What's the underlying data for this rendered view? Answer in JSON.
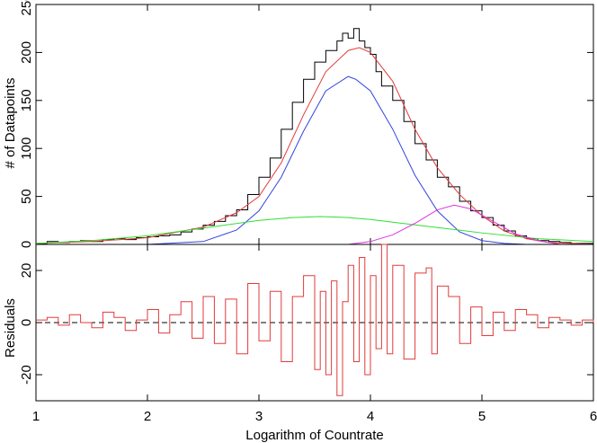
{
  "chart_data": [
    {
      "type": "line",
      "panel": "top",
      "xlabel": "",
      "ylabel": "# of Datapoints",
      "xlim": [
        1,
        6
      ],
      "ylim": [
        0,
        250
      ],
      "yticks": [
        0,
        50,
        100,
        150,
        200,
        250
      ],
      "series": [
        {
          "style": "histogram",
          "color": "#000000",
          "x": [
            1.0,
            1.1,
            1.2,
            1.3,
            1.4,
            1.5,
            1.6,
            1.7,
            1.8,
            1.9,
            2.0,
            2.1,
            2.2,
            2.3,
            2.4,
            2.5,
            2.6,
            2.7,
            2.8,
            2.9,
            3.0,
            3.1,
            3.2,
            3.3,
            3.4,
            3.5,
            3.6,
            3.7,
            3.75,
            3.8,
            3.85,
            3.9,
            3.95,
            4.0,
            4.05,
            4.1,
            4.2,
            4.3,
            4.4,
            4.5,
            4.6,
            4.7,
            4.8,
            4.9,
            5.0,
            5.1,
            5.2,
            5.3,
            5.4,
            5.5,
            5.6,
            5.7,
            5.8,
            5.9,
            6.0
          ],
          "values": [
            1,
            3,
            2,
            3,
            4,
            3,
            5,
            6,
            5,
            7,
            8,
            9,
            10,
            13,
            16,
            20,
            24,
            30,
            36,
            52,
            70,
            90,
            120,
            148,
            172,
            190,
            202,
            212,
            220,
            215,
            225,
            212,
            205,
            198,
            180,
            165,
            150,
            128,
            105,
            88,
            70,
            60,
            45,
            35,
            28,
            20,
            14,
            9,
            6,
            4,
            3,
            2,
            1,
            1,
            0
          ]
        },
        {
          "style": "line",
          "color": "#e23b3b",
          "x": [
            1.0,
            1.5,
            2.0,
            2.5,
            2.8,
            3.0,
            3.2,
            3.4,
            3.6,
            3.8,
            3.9,
            4.0,
            4.2,
            4.4,
            4.6,
            4.8,
            5.0,
            5.2,
            5.4,
            5.6,
            5.8,
            6.0
          ],
          "values": [
            1,
            3,
            7,
            18,
            33,
            50,
            85,
            135,
            180,
            202,
            205,
            200,
            170,
            120,
            80,
            52,
            30,
            14,
            6,
            2,
            1,
            0
          ]
        },
        {
          "style": "line",
          "color": "#3344e0",
          "x": [
            2.0,
            2.5,
            2.8,
            3.0,
            3.2,
            3.4,
            3.6,
            3.8,
            3.87,
            4.0,
            4.2,
            4.4,
            4.6,
            4.8,
            5.0,
            5.2,
            5.4
          ],
          "values": [
            0,
            3,
            15,
            35,
            70,
            118,
            160,
            175,
            172,
            160,
            120,
            72,
            35,
            13,
            4,
            1,
            0
          ]
        },
        {
          "style": "line",
          "color": "#33dd33",
          "x": [
            1.0,
            1.5,
            2.0,
            2.5,
            3.0,
            3.3,
            3.55,
            3.8,
            4.0,
            4.5,
            5.0,
            5.5,
            6.0
          ],
          "values": [
            1,
            4,
            9,
            17,
            25,
            28,
            29,
            28,
            26,
            19,
            12,
            6,
            3
          ]
        },
        {
          "style": "line",
          "color": "#dd33dd",
          "x": [
            3.8,
            4.0,
            4.2,
            4.4,
            4.6,
            4.75,
            4.9,
            5.1,
            5.3,
            5.5,
            5.7
          ],
          "values": [
            0,
            3,
            10,
            22,
            36,
            41,
            37,
            24,
            11,
            4,
            0
          ]
        }
      ]
    },
    {
      "type": "line",
      "panel": "bottom",
      "xlabel": "Logarithm of Countrate",
      "ylabel": "Residuals",
      "xlim": [
        1,
        6
      ],
      "ylim": [
        -30,
        30
      ],
      "xticks": [
        1,
        2,
        3,
        4,
        5,
        6
      ],
      "yticks": [
        -20,
        0,
        20
      ],
      "zero_line": "dashed",
      "series": [
        {
          "style": "histogram",
          "color": "#e23b3b",
          "x": [
            1.0,
            1.1,
            1.2,
            1.3,
            1.4,
            1.5,
            1.6,
            1.7,
            1.8,
            1.9,
            2.0,
            2.1,
            2.2,
            2.3,
            2.4,
            2.5,
            2.6,
            2.7,
            2.8,
            2.9,
            3.0,
            3.1,
            3.2,
            3.3,
            3.4,
            3.5,
            3.55,
            3.6,
            3.65,
            3.7,
            3.75,
            3.8,
            3.85,
            3.9,
            3.95,
            4.0,
            4.05,
            4.1,
            4.15,
            4.2,
            4.3,
            4.4,
            4.5,
            4.55,
            4.6,
            4.7,
            4.8,
            4.9,
            5.0,
            5.1,
            5.2,
            5.3,
            5.4,
            5.5,
            5.6,
            5.7,
            5.8,
            5.9,
            6.0
          ],
          "values": [
            1,
            2,
            -1,
            3,
            0,
            -2,
            4,
            2,
            -3,
            1,
            5,
            -4,
            3,
            8,
            -6,
            10,
            -8,
            9,
            -12,
            15,
            -7,
            12,
            -15,
            10,
            18,
            -18,
            12,
            -20,
            16,
            -28,
            8,
            22,
            -15,
            25,
            -20,
            18,
            -10,
            30,
            -12,
            22,
            -14,
            19,
            21,
            -12,
            14,
            10,
            -8,
            6,
            -5,
            4,
            -3,
            5,
            3,
            -2,
            2,
            1,
            -1,
            1,
            0
          ]
        }
      ]
    }
  ]
}
